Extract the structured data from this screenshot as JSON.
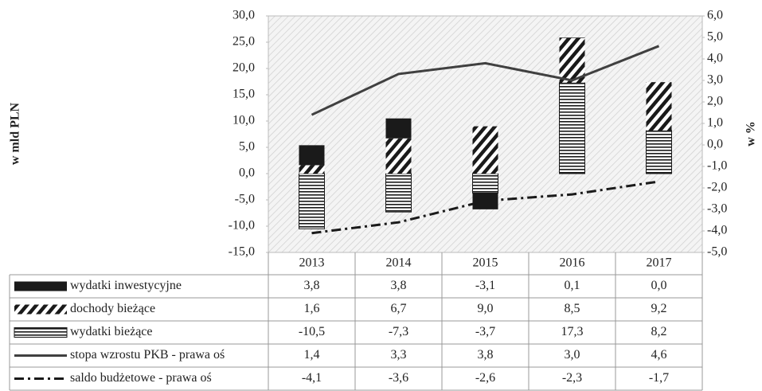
{
  "chart_data": {
    "type": "bar",
    "y_label": "w mld PLN",
    "y2_label": "w %",
    "categories": [
      "2013",
      "2014",
      "2015",
      "2016",
      "2017"
    ],
    "stacked": true,
    "ylim": [
      -15,
      30
    ],
    "yticks": [
      {
        "value": -15,
        "label": "-15,0"
      },
      {
        "value": -10,
        "label": "-10,0"
      },
      {
        "value": -5,
        "label": "-5,0"
      },
      {
        "value": 0,
        "label": "0,0"
      },
      {
        "value": 5,
        "label": "5,0"
      },
      {
        "value": 10,
        "label": "10,0"
      },
      {
        "value": 15,
        "label": "15,0"
      },
      {
        "value": 20,
        "label": "20,0"
      },
      {
        "value": 25,
        "label": "25,0"
      },
      {
        "value": 30,
        "label": "30,0"
      }
    ],
    "y2lim": [
      -5,
      6
    ],
    "y2ticks": [
      {
        "value": -5,
        "label": "-5,0"
      },
      {
        "value": -4,
        "label": "-4,0"
      },
      {
        "value": -3,
        "label": "-3,0"
      },
      {
        "value": -2,
        "label": "-2,0"
      },
      {
        "value": -1,
        "label": "-1,0"
      },
      {
        "value": 0,
        "label": "0,0"
      },
      {
        "value": 1,
        "label": "1,0"
      },
      {
        "value": 2,
        "label": "2,0"
      },
      {
        "value": 3,
        "label": "3,0"
      },
      {
        "value": 4,
        "label": "4,0"
      },
      {
        "value": 5,
        "label": "5,0"
      },
      {
        "value": 6,
        "label": "6,0"
      }
    ],
    "grid": false,
    "series": [
      {
        "name": "wydatki inwestycyjne",
        "type": "bar",
        "color": "#1a1a1a",
        "pattern": "solid",
        "values": [
          3.8,
          3.8,
          -3.1,
          0.1,
          0.0
        ],
        "value_labels": [
          "3,8",
          "3,8",
          "-3,1",
          "0,1",
          "0,0"
        ]
      },
      {
        "name": "dochody bieżące",
        "type": "bar",
        "color": "#1a1a1a",
        "pattern": "diagonal",
        "values": [
          1.6,
          6.7,
          9.0,
          8.5,
          9.2
        ],
        "value_labels": [
          "1,6",
          "6,7",
          "9,0",
          "8,5",
          "9,2"
        ]
      },
      {
        "name": "wydatki bieżące",
        "type": "bar",
        "color": "#1a1a1a",
        "pattern": "horizontal",
        "values": [
          -10.5,
          -7.3,
          -3.7,
          17.3,
          8.2
        ],
        "value_labels": [
          "-10,5",
          "-7,3",
          "-3,7",
          "17,3",
          "8,2"
        ]
      },
      {
        "name": "stopa wzrostu PKB - prawa oś",
        "type": "line",
        "axis": "y2",
        "color": "#404040",
        "dash": "solid",
        "values": [
          1.4,
          3.3,
          3.8,
          3.0,
          4.6
        ],
        "value_labels": [
          "1,4",
          "3,3",
          "3,8",
          "3,0",
          "4,6"
        ]
      },
      {
        "name": "saldo budżetowe - prawa oś",
        "type": "line",
        "axis": "y2",
        "color": "#1a1a1a",
        "dash": "dash-dot",
        "values": [
          -4.1,
          -3.6,
          -2.6,
          -2.3,
          -1.7
        ],
        "value_labels": [
          "-4,1",
          "-3,6",
          "-2,6",
          "-2,3",
          "-1,7"
        ]
      }
    ]
  }
}
